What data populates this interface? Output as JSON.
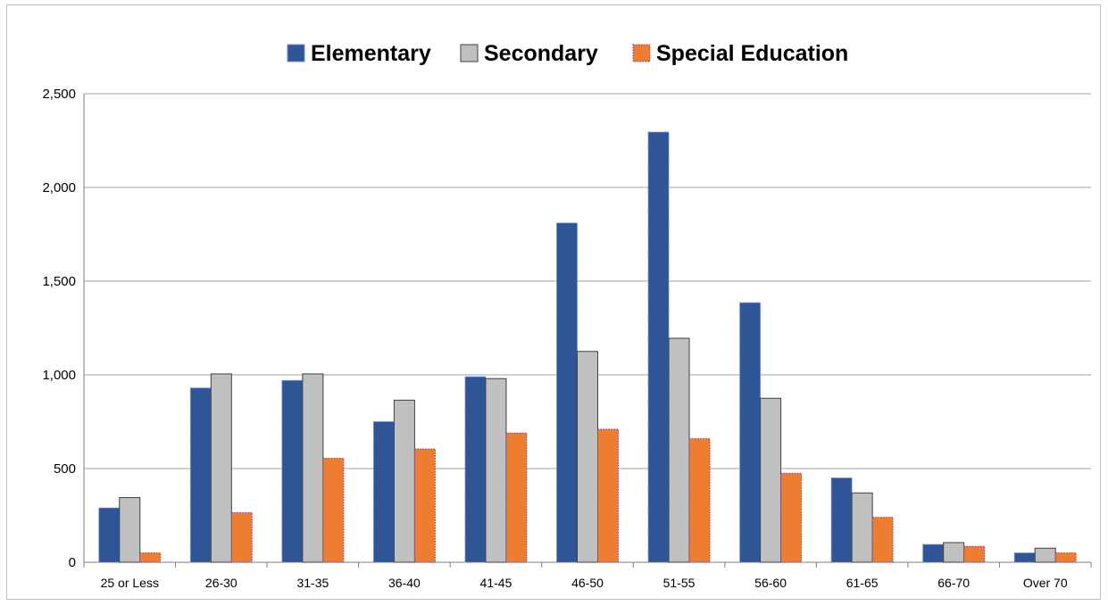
{
  "chart_data": {
    "type": "bar",
    "title": "",
    "xlabel": "",
    "ylabel": "",
    "categories": [
      "25 or Less",
      "26-30",
      "31-35",
      "36-40",
      "41-45",
      "46-50",
      "51-55",
      "56-60",
      "61-65",
      "66-70",
      "Over 70"
    ],
    "series": [
      {
        "name": "Elementary",
        "color": "#2f5597",
        "values": [
          290,
          930,
          970,
          750,
          990,
          1810,
          2295,
          1385,
          450,
          95,
          50
        ]
      },
      {
        "name": "Secondary",
        "color": "#c0c0c0",
        "values": [
          345,
          1005,
          1005,
          865,
          980,
          1125,
          1195,
          875,
          370,
          105,
          75
        ]
      },
      {
        "name": "Special Education",
        "color": "#ed7d31",
        "values": [
          50,
          265,
          555,
          605,
          690,
          710,
          660,
          475,
          240,
          85,
          50
        ]
      }
    ],
    "ylim": [
      0,
      2500
    ],
    "yticks": [
      "0",
      "500",
      "1,000",
      "1,500",
      "2,000",
      "2,500"
    ],
    "ytick_values": [
      0,
      500,
      1000,
      1500,
      2000,
      2500
    ],
    "grid": true,
    "legend_position": "top"
  }
}
